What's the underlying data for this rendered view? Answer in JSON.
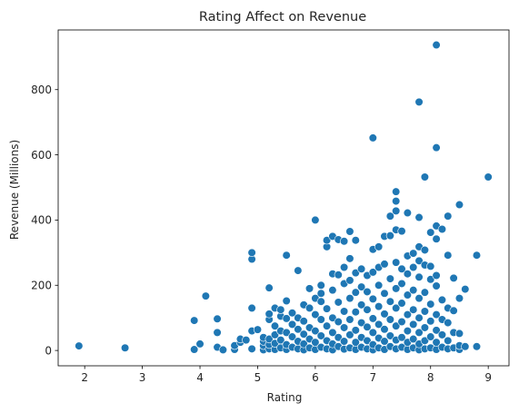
{
  "chart_data": {
    "type": "scatter",
    "title": "Rating Affect on Revenue",
    "xlabel": "Rating",
    "ylabel": "Revenue (Millions)",
    "xlim": [
      1.54,
      9.36
    ],
    "ylim": [
      -47,
      983
    ],
    "xticks": [
      2,
      3,
      4,
      5,
      6,
      7,
      8,
      9
    ],
    "yticks": [
      0,
      200,
      400,
      600,
      800
    ],
    "grid": false,
    "legend": "none",
    "point_color": "#1f77b4",
    "points": [
      [
        1.9,
        14
      ],
      [
        2.7,
        8
      ],
      [
        3.9,
        3
      ],
      [
        3.9,
        92
      ],
      [
        4.0,
        20
      ],
      [
        4.1,
        167
      ],
      [
        4.3,
        97
      ],
      [
        4.3,
        55
      ],
      [
        4.3,
        10
      ],
      [
        4.4,
        2
      ],
      [
        4.6,
        3
      ],
      [
        4.6,
        15
      ],
      [
        4.7,
        25
      ],
      [
        4.7,
        35
      ],
      [
        4.8,
        32
      ],
      [
        4.9,
        5
      ],
      [
        4.9,
        60
      ],
      [
        4.9,
        130
      ],
      [
        4.9,
        280
      ],
      [
        4.9,
        300
      ],
      [
        5.0,
        64
      ],
      [
        5.1,
        2
      ],
      [
        5.1,
        15
      ],
      [
        5.1,
        28
      ],
      [
        5.1,
        40
      ],
      [
        5.2,
        5
      ],
      [
        5.2,
        18
      ],
      [
        5.2,
        35
      ],
      [
        5.2,
        95
      ],
      [
        5.2,
        112
      ],
      [
        5.2,
        192
      ],
      [
        5.3,
        3
      ],
      [
        5.3,
        22
      ],
      [
        5.3,
        48
      ],
      [
        5.3,
        75
      ],
      [
        5.3,
        130
      ],
      [
        5.4,
        8
      ],
      [
        5.4,
        32
      ],
      [
        5.4,
        60
      ],
      [
        5.4,
        105
      ],
      [
        5.4,
        125
      ],
      [
        5.5,
        3
      ],
      [
        5.5,
        18
      ],
      [
        5.5,
        55
      ],
      [
        5.5,
        98
      ],
      [
        5.5,
        152
      ],
      [
        5.5,
        292
      ],
      [
        5.6,
        10
      ],
      [
        5.6,
        42
      ],
      [
        5.6,
        80
      ],
      [
        5.6,
        115
      ],
      [
        5.7,
        5
      ],
      [
        5.7,
        28
      ],
      [
        5.7,
        65
      ],
      [
        5.7,
        100
      ],
      [
        5.7,
        245
      ],
      [
        5.8,
        2
      ],
      [
        5.8,
        20
      ],
      [
        5.8,
        50
      ],
      [
        5.8,
        90
      ],
      [
        5.8,
        140
      ],
      [
        5.9,
        8
      ],
      [
        5.9,
        35
      ],
      [
        5.9,
        70
      ],
      [
        5.9,
        130
      ],
      [
        5.9,
        190
      ],
      [
        6.0,
        3
      ],
      [
        6.0,
        25
      ],
      [
        6.0,
        60
      ],
      [
        6.0,
        110
      ],
      [
        6.0,
        160
      ],
      [
        6.0,
        400
      ],
      [
        6.1,
        10
      ],
      [
        6.1,
        45
      ],
      [
        6.1,
        95
      ],
      [
        6.1,
        150
      ],
      [
        6.1,
        200
      ],
      [
        6.1,
        175
      ],
      [
        6.2,
        5
      ],
      [
        6.2,
        30
      ],
      [
        6.2,
        75
      ],
      [
        6.2,
        128
      ],
      [
        6.2,
        318
      ],
      [
        6.2,
        338
      ],
      [
        6.3,
        2
      ],
      [
        6.3,
        20
      ],
      [
        6.3,
        55
      ],
      [
        6.3,
        100
      ],
      [
        6.3,
        185
      ],
      [
        6.3,
        235
      ],
      [
        6.3,
        350
      ],
      [
        6.4,
        12
      ],
      [
        6.4,
        40
      ],
      [
        6.4,
        88
      ],
      [
        6.4,
        148
      ],
      [
        6.4,
        232
      ],
      [
        6.4,
        340
      ],
      [
        6.5,
        4
      ],
      [
        6.5,
        28
      ],
      [
        6.5,
        70
      ],
      [
        6.5,
        120
      ],
      [
        6.5,
        205
      ],
      [
        6.5,
        255
      ],
      [
        6.5,
        335
      ],
      [
        6.6,
        8
      ],
      [
        6.6,
        48
      ],
      [
        6.6,
        95
      ],
      [
        6.6,
        160
      ],
      [
        6.6,
        215
      ],
      [
        6.6,
        282
      ],
      [
        6.6,
        365
      ],
      [
        6.7,
        3
      ],
      [
        6.7,
        25
      ],
      [
        6.7,
        62
      ],
      [
        6.7,
        118
      ],
      [
        6.7,
        178
      ],
      [
        6.7,
        238
      ],
      [
        6.7,
        338
      ],
      [
        6.8,
        10
      ],
      [
        6.8,
        40
      ],
      [
        6.8,
        85
      ],
      [
        6.8,
        140
      ],
      [
        6.8,
        195
      ],
      [
        6.8,
        250
      ],
      [
        6.9,
        5
      ],
      [
        6.9,
        30
      ],
      [
        6.9,
        72
      ],
      [
        6.9,
        125
      ],
      [
        6.9,
        180
      ],
      [
        6.9,
        230
      ],
      [
        7.0,
        2
      ],
      [
        7.0,
        18
      ],
      [
        7.0,
        55
      ],
      [
        7.0,
        98
      ],
      [
        7.0,
        158
      ],
      [
        7.0,
        240
      ],
      [
        7.0,
        310
      ],
      [
        7.0,
        652
      ],
      [
        7.1,
        8
      ],
      [
        7.1,
        38
      ],
      [
        7.1,
        80
      ],
      [
        7.1,
        135
      ],
      [
        7.1,
        200
      ],
      [
        7.1,
        255
      ],
      [
        7.1,
        318
      ],
      [
        7.2,
        3
      ],
      [
        7.2,
        28
      ],
      [
        7.2,
        65
      ],
      [
        7.2,
        112
      ],
      [
        7.2,
        175
      ],
      [
        7.2,
        265
      ],
      [
        7.2,
        350
      ],
      [
        7.3,
        12
      ],
      [
        7.3,
        45
      ],
      [
        7.3,
        95
      ],
      [
        7.3,
        150
      ],
      [
        7.3,
        220
      ],
      [
        7.3,
        412
      ],
      [
        7.3,
        352
      ],
      [
        7.4,
        5
      ],
      [
        7.4,
        32
      ],
      [
        7.4,
        75
      ],
      [
        7.4,
        130
      ],
      [
        7.4,
        190
      ],
      [
        7.4,
        270
      ],
      [
        7.4,
        370
      ],
      [
        7.4,
        428
      ],
      [
        7.4,
        458
      ],
      [
        7.4,
        487
      ],
      [
        7.5,
        10
      ],
      [
        7.5,
        40
      ],
      [
        7.5,
        88
      ],
      [
        7.5,
        145
      ],
      [
        7.5,
        205
      ],
      [
        7.5,
        250
      ],
      [
        7.5,
        366
      ],
      [
        7.6,
        3
      ],
      [
        7.6,
        25
      ],
      [
        7.6,
        60
      ],
      [
        7.6,
        110
      ],
      [
        7.6,
        170
      ],
      [
        7.6,
        235
      ],
      [
        7.6,
        290
      ],
      [
        7.6,
        422
      ],
      [
        7.7,
        8
      ],
      [
        7.7,
        35
      ],
      [
        7.7,
        80
      ],
      [
        7.7,
        125
      ],
      [
        7.7,
        185
      ],
      [
        7.7,
        255
      ],
      [
        7.7,
        298
      ],
      [
        7.8,
        2
      ],
      [
        7.8,
        20
      ],
      [
        7.8,
        55
      ],
      [
        7.8,
        100
      ],
      [
        7.8,
        160
      ],
      [
        7.8,
        225
      ],
      [
        7.8,
        275
      ],
      [
        7.8,
        318
      ],
      [
        7.8,
        408
      ],
      [
        7.8,
        762
      ],
      [
        7.9,
        5
      ],
      [
        7.9,
        30
      ],
      [
        7.9,
        70
      ],
      [
        7.9,
        120
      ],
      [
        7.9,
        178
      ],
      [
        7.9,
        262
      ],
      [
        7.9,
        308
      ],
      [
        7.9,
        532
      ],
      [
        8.0,
        8
      ],
      [
        8.0,
        42
      ],
      [
        8.0,
        90
      ],
      [
        8.0,
        142
      ],
      [
        8.0,
        218
      ],
      [
        8.0,
        258
      ],
      [
        8.0,
        362
      ],
      [
        8.1,
        3
      ],
      [
        8.1,
        25
      ],
      [
        8.1,
        62
      ],
      [
        8.1,
        110
      ],
      [
        8.1,
        198
      ],
      [
        8.1,
        230
      ],
      [
        8.1,
        342
      ],
      [
        8.1,
        382
      ],
      [
        8.1,
        622
      ],
      [
        8.1,
        937
      ],
      [
        8.2,
        10
      ],
      [
        8.2,
        48
      ],
      [
        8.2,
        95
      ],
      [
        8.2,
        155
      ],
      [
        8.2,
        372
      ],
      [
        8.3,
        5
      ],
      [
        8.3,
        30
      ],
      [
        8.3,
        85
      ],
      [
        8.3,
        130
      ],
      [
        8.3,
        292
      ],
      [
        8.3,
        412
      ],
      [
        8.4,
        8
      ],
      [
        8.4,
        55
      ],
      [
        8.4,
        122
      ],
      [
        8.4,
        222
      ],
      [
        8.5,
        3
      ],
      [
        8.5,
        15
      ],
      [
        8.5,
        52
      ],
      [
        8.5,
        160
      ],
      [
        8.5,
        447
      ],
      [
        8.6,
        12
      ],
      [
        8.6,
        188
      ],
      [
        8.8,
        12
      ],
      [
        8.8,
        292
      ],
      [
        9.0,
        532
      ]
    ]
  }
}
